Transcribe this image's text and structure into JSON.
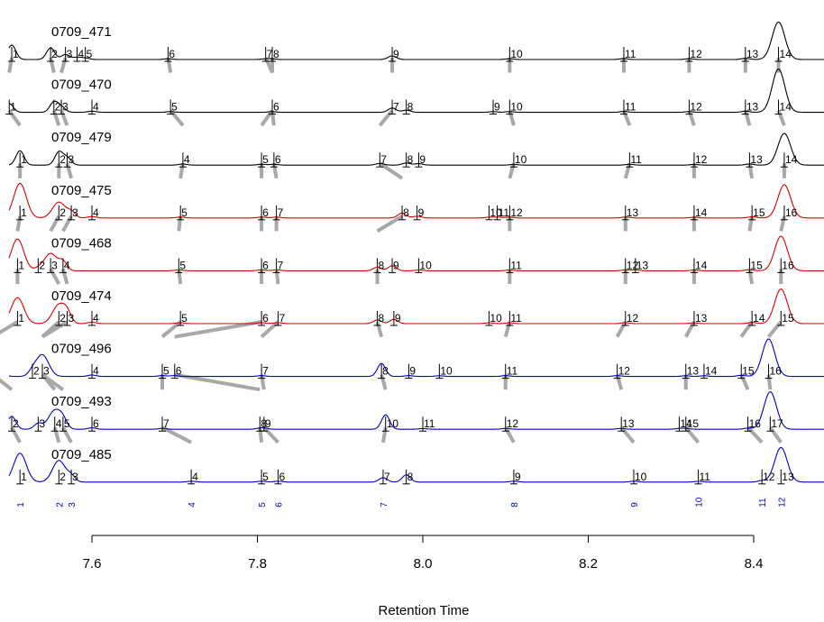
{
  "chart_data": {
    "type": "line",
    "title": "",
    "xlabel": "Retention Time",
    "ylabel": "",
    "xlim": [
      7.48,
      8.48
    ],
    "xticks": [
      7.6,
      7.8,
      8.0,
      8.2,
      8.4
    ],
    "xtick_labels": [
      "7.6",
      "7.8",
      "8.0",
      "8.2",
      "8.4"
    ],
    "colors": {
      "black": "#000000",
      "red": "#dd0000",
      "blue": "#0000cc",
      "link": "#a8a8a8"
    },
    "series": [
      {
        "name": "0709_471",
        "color": "#000000",
        "peaks": [
          {
            "id": "1",
            "x": 7.503,
            "h": 1.0
          },
          {
            "id": "2",
            "x": 7.55,
            "h": 0.8
          },
          {
            "id": "3",
            "x": 7.568,
            "h": 0.35
          },
          {
            "id": "4",
            "x": 7.582,
            "h": 0.15
          },
          {
            "id": "5",
            "x": 7.592,
            "h": 0.1
          },
          {
            "id": "6",
            "x": 7.692,
            "h": 0.05
          },
          {
            "id": "7",
            "x": 7.81,
            "h": 0.04
          },
          {
            "id": "8",
            "x": 7.818,
            "h": 0.04
          },
          {
            "id": "9",
            "x": 7.963,
            "h": 0.25
          },
          {
            "id": "10",
            "x": 8.105,
            "h": 0.05
          },
          {
            "id": "11",
            "x": 8.243,
            "h": 0.06
          },
          {
            "id": "12",
            "x": 8.322,
            "h": 0.05
          },
          {
            "id": "13",
            "x": 8.39,
            "h": 0.08
          },
          {
            "id": "14",
            "x": 8.43,
            "h": 2.6
          }
        ]
      },
      {
        "name": "0709_470",
        "color": "#000000",
        "peaks": [
          {
            "id": "1",
            "x": 7.5,
            "h": 0.6
          },
          {
            "id": "2",
            "x": 7.554,
            "h": 0.7
          },
          {
            "id": "3",
            "x": 7.563,
            "h": 0.35
          },
          {
            "id": "4",
            "x": 7.6,
            "h": 0.08
          },
          {
            "id": "5",
            "x": 7.695,
            "h": 0.05
          },
          {
            "id": "6",
            "x": 7.818,
            "h": 0.05
          },
          {
            "id": "7",
            "x": 7.963,
            "h": 0.3
          },
          {
            "id": "8",
            "x": 7.98,
            "h": 0.15
          },
          {
            "id": "9",
            "x": 8.085,
            "h": 0.05
          },
          {
            "id": "10",
            "x": 8.105,
            "h": 0.05
          },
          {
            "id": "11",
            "x": 8.243,
            "h": 0.06
          },
          {
            "id": "12",
            "x": 8.322,
            "h": 0.05
          },
          {
            "id": "13",
            "x": 8.39,
            "h": 0.08
          },
          {
            "id": "14",
            "x": 8.43,
            "h": 3.0
          }
        ]
      },
      {
        "name": "0709_479",
        "color": "#000000",
        "peaks": [
          {
            "id": "1",
            "x": 7.513,
            "h": 1.0
          },
          {
            "id": "2",
            "x": 7.56,
            "h": 0.9
          },
          {
            "id": "3",
            "x": 7.57,
            "h": 0.5
          },
          {
            "id": "4",
            "x": 7.71,
            "h": 0.08
          },
          {
            "id": "5",
            "x": 7.805,
            "h": 0.06
          },
          {
            "id": "6",
            "x": 7.82,
            "h": 0.06
          },
          {
            "id": "7",
            "x": 7.948,
            "h": 0.12
          },
          {
            "id": "8",
            "x": 7.98,
            "h": 0.15
          },
          {
            "id": "9",
            "x": 7.995,
            "h": 0.1
          },
          {
            "id": "10",
            "x": 8.11,
            "h": 0.05
          },
          {
            "id": "11",
            "x": 8.25,
            "h": 0.06
          },
          {
            "id": "12",
            "x": 8.328,
            "h": 0.05
          },
          {
            "id": "13",
            "x": 8.395,
            "h": 0.08
          },
          {
            "id": "14",
            "x": 8.437,
            "h": 2.2
          }
        ]
      },
      {
        "name": "0709_475",
        "color": "#dd0000",
        "peaks": [
          {
            "id": "1",
            "x": 7.513,
            "h": 2.4
          },
          {
            "id": "2",
            "x": 7.56,
            "h": 1.1
          },
          {
            "id": "3",
            "x": 7.575,
            "h": 0.4
          },
          {
            "id": "4",
            "x": 7.6,
            "h": 0.1
          },
          {
            "id": "5",
            "x": 7.707,
            "h": 0.06
          },
          {
            "id": "6",
            "x": 7.805,
            "h": 0.06
          },
          {
            "id": "7",
            "x": 7.823,
            "h": 0.06
          },
          {
            "id": "8",
            "x": 7.975,
            "h": 0.35
          },
          {
            "id": "9",
            "x": 7.993,
            "h": 0.12
          },
          {
            "id": "10",
            "x": 8.08,
            "h": 0.05
          },
          {
            "id": "11",
            "x": 8.09,
            "h": 0.05
          },
          {
            "id": "12",
            "x": 8.105,
            "h": 0.05
          },
          {
            "id": "13",
            "x": 8.245,
            "h": 0.06
          },
          {
            "id": "14",
            "x": 8.328,
            "h": 0.05
          },
          {
            "id": "15",
            "x": 8.398,
            "h": 0.08
          },
          {
            "id": "16",
            "x": 8.437,
            "h": 2.3
          }
        ]
      },
      {
        "name": "0709_468",
        "color": "#dd0000",
        "peaks": [
          {
            "id": "1",
            "x": 7.51,
            "h": 2.2
          },
          {
            "id": "2",
            "x": 7.535,
            "h": 0.15
          },
          {
            "id": "3",
            "x": 7.55,
            "h": 1.2
          },
          {
            "id": "4",
            "x": 7.565,
            "h": 0.6
          },
          {
            "id": "5",
            "x": 7.705,
            "h": 0.06
          },
          {
            "id": "6",
            "x": 7.805,
            "h": 0.06
          },
          {
            "id": "7",
            "x": 7.823,
            "h": 0.06
          },
          {
            "id": "8",
            "x": 7.945,
            "h": 0.25
          },
          {
            "id": "9",
            "x": 7.963,
            "h": 0.35
          },
          {
            "id": "10",
            "x": 7.995,
            "h": 0.05
          },
          {
            "id": "11",
            "x": 8.105,
            "h": 0.05
          },
          {
            "id": "12",
            "x": 8.245,
            "h": 0.06
          },
          {
            "id": "13",
            "x": 8.257,
            "h": 0.06
          },
          {
            "id": "14",
            "x": 8.328,
            "h": 0.05
          },
          {
            "id": "15",
            "x": 8.395,
            "h": 0.08
          },
          {
            "id": "16",
            "x": 8.433,
            "h": 2.4
          }
        ]
      },
      {
        "name": "0709_474",
        "color": "#dd0000",
        "peaks": [
          {
            "id": "1",
            "x": 7.51,
            "h": 1.8
          },
          {
            "id": "2",
            "x": 7.56,
            "h": 1.3
          },
          {
            "id": "3",
            "x": 7.57,
            "h": 0.6
          },
          {
            "id": "4",
            "x": 7.6,
            "h": 0.1
          },
          {
            "id": "5",
            "x": 7.707,
            "h": 0.06
          },
          {
            "id": "6",
            "x": 7.805,
            "h": 0.06
          },
          {
            "id": "7",
            "x": 7.825,
            "h": 0.06
          },
          {
            "id": "8",
            "x": 7.945,
            "h": 0.25
          },
          {
            "id": "9",
            "x": 7.965,
            "h": 0.3
          },
          {
            "id": "10",
            "x": 8.08,
            "h": 0.05
          },
          {
            "id": "11",
            "x": 8.105,
            "h": 0.05
          },
          {
            "id": "12",
            "x": 8.245,
            "h": 0.06
          },
          {
            "id": "13",
            "x": 8.328,
            "h": 0.05
          },
          {
            "id": "14",
            "x": 8.398,
            "h": 0.08
          },
          {
            "id": "15",
            "x": 8.433,
            "h": 2.4
          }
        ]
      },
      {
        "name": "0709_496",
        "color": "#0000cc",
        "peaks": [
          {
            "id": "1",
            "x": 7.48,
            "h": 1.3
          },
          {
            "id": "2",
            "x": 7.528,
            "h": 0.3
          },
          {
            "id": "3",
            "x": 7.54,
            "h": 1.5
          },
          {
            "id": "4",
            "x": 7.6,
            "h": 0.1
          },
          {
            "id": "5",
            "x": 7.685,
            "h": 0.06
          },
          {
            "id": "6",
            "x": 7.7,
            "h": 0.06
          },
          {
            "id": "7",
            "x": 7.805,
            "h": 0.06
          },
          {
            "id": "8",
            "x": 7.95,
            "h": 0.9
          },
          {
            "id": "9",
            "x": 7.983,
            "h": 0.06
          },
          {
            "id": "10",
            "x": 8.02,
            "h": 0.05
          },
          {
            "id": "11",
            "x": 8.1,
            "h": 0.06
          },
          {
            "id": "12",
            "x": 8.235,
            "h": 0.06
          },
          {
            "id": "13",
            "x": 8.318,
            "h": 0.05
          },
          {
            "id": "14",
            "x": 8.34,
            "h": 0.05
          },
          {
            "id": "15",
            "x": 8.385,
            "h": 0.08
          },
          {
            "id": "16",
            "x": 8.418,
            "h": 2.6
          }
        ]
      },
      {
        "name": "0709_493",
        "color": "#0000cc",
        "peaks": [
          {
            "id": "1",
            "x": 7.48,
            "h": 0.8
          },
          {
            "id": "2",
            "x": 7.503,
            "h": 0.9
          },
          {
            "id": "3",
            "x": 7.535,
            "h": 0.4
          },
          {
            "id": "4",
            "x": 7.555,
            "h": 1.3
          },
          {
            "id": "5",
            "x": 7.565,
            "h": 0.5
          },
          {
            "id": "6",
            "x": 7.6,
            "h": 0.1
          },
          {
            "id": "7",
            "x": 7.685,
            "h": 0.06
          },
          {
            "id": "8",
            "x": 7.803,
            "h": 0.06
          },
          {
            "id": "9",
            "x": 7.808,
            "h": 0.06
          },
          {
            "id": "10",
            "x": 7.955,
            "h": 1.0
          },
          {
            "id": "11",
            "x": 8.0,
            "h": 0.05
          },
          {
            "id": "12",
            "x": 8.1,
            "h": 0.06
          },
          {
            "id": "13",
            "x": 8.24,
            "h": 0.06
          },
          {
            "id": "14",
            "x": 8.31,
            "h": 0.05
          },
          {
            "id": "15",
            "x": 8.318,
            "h": 0.05
          },
          {
            "id": "16",
            "x": 8.393,
            "h": 0.08
          },
          {
            "id": "17",
            "x": 8.42,
            "h": 2.6
          }
        ]
      },
      {
        "name": "0709_485",
        "color": "#0000cc",
        "peaks": [
          {
            "id": "1",
            "x": 7.513,
            "h": 2.0
          },
          {
            "id": "2",
            "x": 7.56,
            "h": 1.5
          },
          {
            "id": "3",
            "x": 7.575,
            "h": 0.4
          },
          {
            "id": "4",
            "x": 7.72,
            "h": 0.06
          },
          {
            "id": "5",
            "x": 7.805,
            "h": 0.06
          },
          {
            "id": "6",
            "x": 7.825,
            "h": 0.06
          },
          {
            "id": "7",
            "x": 7.952,
            "h": 0.3
          },
          {
            "id": "8",
            "x": 7.98,
            "h": 0.5
          },
          {
            "id": "9",
            "x": 8.11,
            "h": 0.06
          },
          {
            "id": "10",
            "x": 8.255,
            "h": 0.06
          },
          {
            "id": "11",
            "x": 8.333,
            "h": 0.05
          },
          {
            "id": "12",
            "x": 8.41,
            "h": 0.1
          },
          {
            "id": "13",
            "x": 8.433,
            "h": 2.4
          }
        ]
      }
    ],
    "alignment_groups": [
      {
        "id": "1",
        "x": 7.513,
        "members": [
          1,
          1,
          1,
          1,
          1,
          1,
          1,
          2,
          1
        ]
      },
      {
        "id": "2",
        "x": 7.56,
        "members": [
          2,
          2,
          2,
          2,
          3,
          2,
          3,
          4,
          2
        ]
      },
      {
        "id": "3",
        "x": 7.575,
        "members": [
          3,
          3,
          3,
          3,
          4,
          3,
          3,
          5,
          3
        ]
      },
      {
        "id": "4",
        "x": 7.72,
        "members": [
          6,
          5,
          4,
          5,
          5,
          5,
          5,
          7,
          4
        ]
      },
      {
        "id": "5",
        "x": 7.805,
        "members": [
          7,
          6,
          5,
          6,
          6,
          6,
          6,
          8,
          5
        ]
      },
      {
        "id": "6",
        "x": 7.825,
        "members": [
          8,
          6,
          6,
          7,
          7,
          7,
          7,
          9,
          6
        ]
      },
      {
        "id": "7",
        "x": 7.952,
        "members": [
          9,
          7,
          7,
          8,
          8,
          8,
          8,
          10,
          7
        ]
      },
      {
        "id": "8",
        "x": 8.11,
        "members": [
          10,
          10,
          10,
          12,
          11,
          11,
          11,
          12,
          9
        ]
      },
      {
        "id": "9",
        "x": 8.255,
        "members": [
          11,
          11,
          11,
          13,
          12,
          12,
          12,
          13,
          10
        ]
      },
      {
        "id": "10",
        "x": 8.333,
        "members": [
          12,
          12,
          12,
          14,
          14,
          13,
          13,
          15,
          11
        ]
      },
      {
        "id": "11",
        "x": 8.41,
        "members": [
          13,
          13,
          13,
          15,
          15,
          14,
          15,
          16,
          12
        ]
      },
      {
        "id": "12",
        "x": 8.433,
        "members": [
          14,
          14,
          14,
          16,
          16,
          15,
          16,
          17,
          13
        ]
      }
    ]
  }
}
